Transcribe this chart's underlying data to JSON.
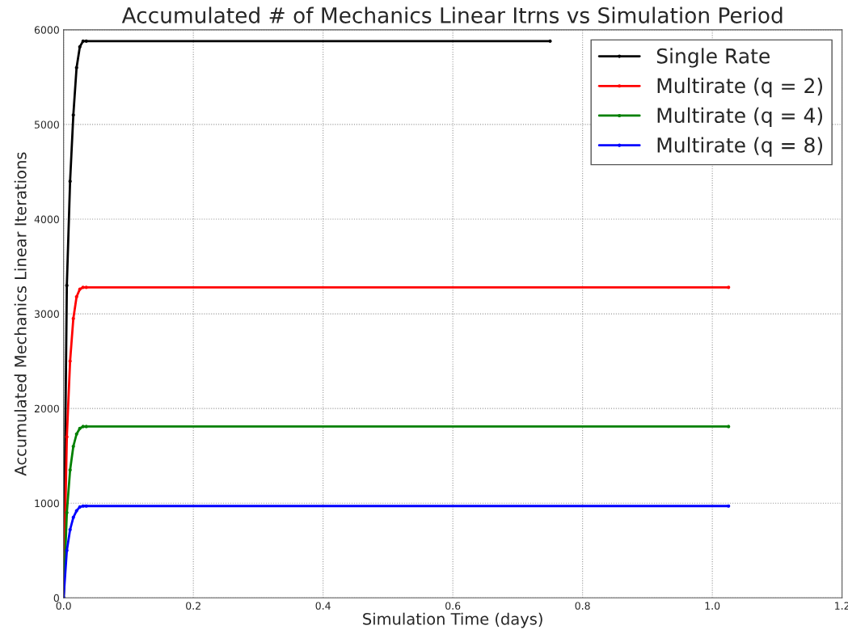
{
  "chart_data": {
    "type": "line",
    "title": "Accumulated # of Mechanics Linear Itrns vs Simulation Period",
    "xlabel": "Simulation Time (days)",
    "ylabel": "Accumulated Mechanics Linear Iterations",
    "x": [
      0,
      0.005,
      0.01,
      0.015,
      0.02,
      0.025,
      0.03,
      0.035,
      1.025
    ],
    "series": [
      {
        "name": "Single Rate",
        "color": "#000000",
        "x": [
          0,
          0.005,
          0.01,
          0.015,
          0.02,
          0.025,
          0.03,
          0.035,
          0.75
        ],
        "values": [
          0,
          3300,
          4400,
          5100,
          5600,
          5820,
          5880,
          5880,
          5880
        ]
      },
      {
        "name": "Multirate (q = 2)",
        "color": "#ff0000",
        "values": [
          0,
          1700,
          2500,
          2950,
          3180,
          3260,
          3280,
          3280,
          3280
        ]
      },
      {
        "name": "Multirate (q = 4)",
        "color": "#008000",
        "values": [
          0,
          900,
          1350,
          1600,
          1730,
          1790,
          1810,
          1810,
          1810
        ]
      },
      {
        "name": "Multirate (q = 8)",
        "color": "#0000ff",
        "values": [
          0,
          500,
          720,
          850,
          920,
          960,
          970,
          970,
          970
        ]
      }
    ],
    "xlim": [
      0,
      1.2
    ],
    "xticks": [
      {
        "value": 0,
        "label": "0.0"
      },
      0.2,
      0.4,
      0.6,
      0.8,
      {
        "value": 1,
        "label": "1.0"
      },
      1.2
    ],
    "ylim": [
      0,
      6000
    ],
    "yticks": [
      0,
      1000,
      2000,
      3000,
      4000,
      5000,
      6000
    ],
    "grid": true,
    "legend": "top right",
    "marker": "circle",
    "line_style": "solid"
  }
}
